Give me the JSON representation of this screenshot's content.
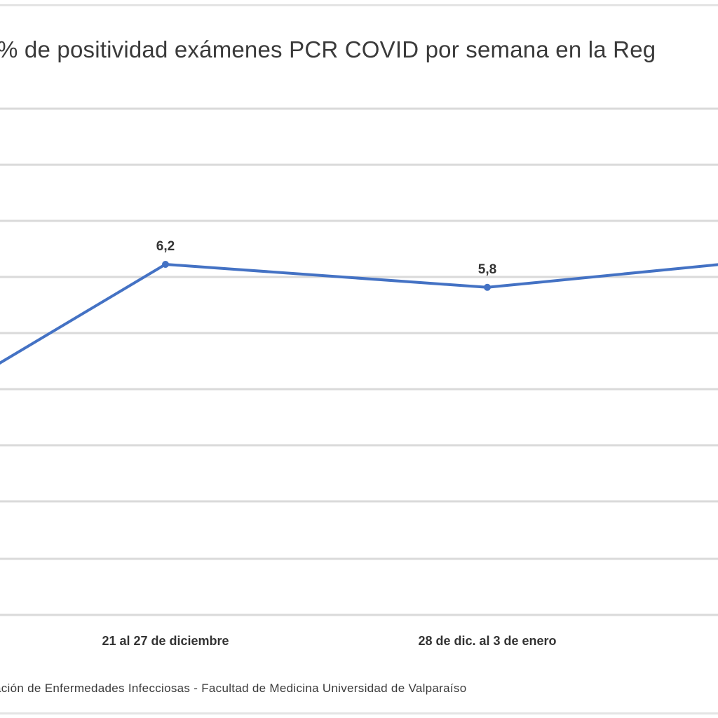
{
  "chart_data": {
    "type": "line",
    "title": "% de positividad exámenes PCR COVID por semana en la Reg",
    "categories": [
      "21 al 27 de diciembre",
      "28 de dic. al 3 de enero"
    ],
    "series": [
      {
        "points": [
          {
            "x": "21 al 27 de diciembre",
            "y": 6.2,
            "label": "6,2"
          },
          {
            "x": "28 de dic. al 3 de enero",
            "y": 5.8,
            "label": "5,8"
          }
        ],
        "color": "#4472c4"
      }
    ],
    "grid": true,
    "legend": "none"
  },
  "source_note": "ación de Enfermedades Infecciosas - Facultad de Medicina Universidad de Valparaíso"
}
